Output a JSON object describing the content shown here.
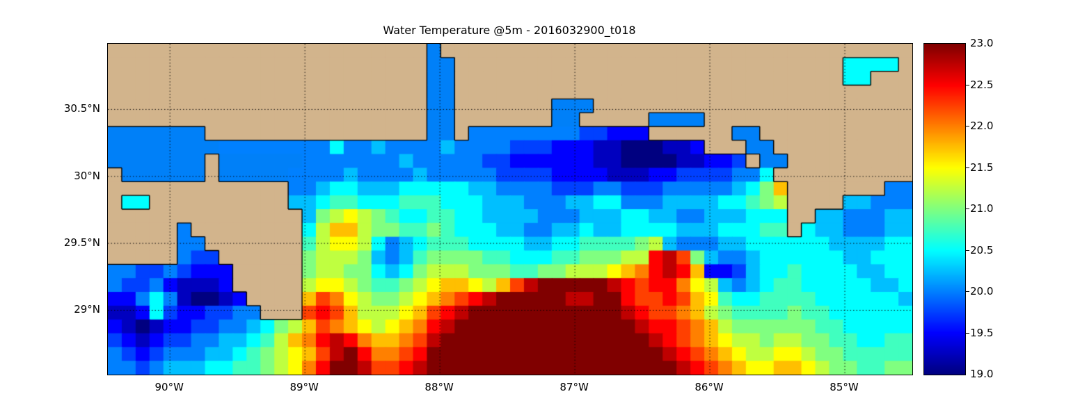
{
  "title": "Water Temperature @5m - 2016032900_t018",
  "chart_data": {
    "type": "heatmap",
    "title": "Water Temperature @5m - 2016032900_t018",
    "colormap": "jet",
    "value_range": [
      19.0,
      23.0
    ],
    "legend_position": "right-colorbar",
    "grid_on": true,
    "gridline_style": "dotted-black",
    "x_axis": {
      "tick_labels": [
        "90°W",
        "89°W",
        "88°W",
        "87°W",
        "86°W",
        "85°W"
      ],
      "tick_values": [
        90,
        89,
        88,
        87,
        86,
        85
      ],
      "lon_left_w": 90.46,
      "lon_right_w": 84.5
    },
    "y_axis": {
      "tick_labels": [
        "30.5°N",
        "30°N",
        "29.5°N",
        "29°N"
      ],
      "tick_values": [
        30.5,
        30.0,
        29.5,
        29.0
      ],
      "lat_top_n": 30.99,
      "lat_bottom_n": 28.52
    },
    "colorbar": {
      "min": 19.0,
      "max": 23.0,
      "tick_labels": [
        "23.0",
        "22.5",
        "22.0",
        "21.5",
        "21.0",
        "20.5",
        "20.0",
        "19.5",
        "19.0"
      ],
      "tick_values": [
        23.0,
        22.5,
        22.0,
        21.5,
        21.0,
        20.5,
        20.0,
        19.5,
        19.0
      ]
    },
    "colors": {
      "land": "#d2b48c",
      "inland_water": "#0080f8",
      "shallow_lake": "#00ffff",
      "coastline": "#000000",
      "background": "#ffffff"
    },
    "grid": {
      "cols": 58,
      "rows": 24,
      "temp_chars": "0123456789abcdefg",
      "temp_min": 19.0,
      "temp_step": 0.25,
      "cell_legend": {
        "L": "land",
        "B": "inland-water (bays and lakes, ~20.0 °C flat blue)",
        "C": "shallow cyan lake",
        "0-g": "sea temperature 19.0 to 23.0 °C in 0.25 °C steps"
      },
      "cells": [
        [
          "LLLLLLLLLLLLLLLLLLLLLLL",
          "B",
          "LLLLLLLLLLLLLLLLLLLLLLLLLLLLLLLLLL"
        ],
        [
          "LLLLLLLLLLLLLLLLLLLLLLL",
          "BB",
          "LLLLLLLLLLLLLLLLLLLLLLLLLLLL",
          "CCCC",
          "L"
        ],
        [
          "LLLLLLLLLLLLLLLLLLLLLLL",
          "BB",
          "LLLLLLLLLLLLLLLLLLLLLLLLLLLL",
          "CC",
          "LLL"
        ],
        [
          "LLLLLLLLLLLLLLLLLLLLLLL",
          "BB",
          "LLLLLLLLLLLLLLLLLLLLLLLLLLLLLLLLL"
        ],
        [
          "LLLLLLLLLLLLLLLLLLLLLLL",
          "BB",
          "LLLLLLL",
          "BBB",
          "LLLLLLLLLLLLLLLLLLLLLLL"
        ],
        [
          "LLLLLLLLLLLLLLLLLLLLLLL",
          "BB",
          "LLLLLLL",
          "BB",
          "LLLLL",
          "BBBB",
          "LLLLLLLLLLLLLLL"
        ],
        [
          "BBBBBBB",
          "LLLLLLLLLLLLLLLL",
          "BB",
          "L",
          "4444444433222",
          "LLLLLL",
          "BB",
          "LLLLLLLLLLL"
        ],
        [
          "BBBBBBB",
          "B",
          "4444444",
          "464454444544",
          "44333222",
          "11000112",
          "LLL",
          "BB",
          "LLLLLLLLLL"
        ],
        [
          "BBBBBBB",
          "L",
          "BBBBBB",
          "4",
          "444444544444",
          "3322222",
          "2110000112",
          "23",
          "L",
          "BB",
          "LLLLLLLLL"
        ],
        [
          "L",
          "BBBBBB",
          "L",
          "BBBBB",
          "44",
          "445444454444",
          "43333222",
          "21112233",
          "33446",
          "LLLLLLLLLL"
        ],
        [
          "LLLLLLLLLLLLL",
          "44",
          "5665",
          "556666",
          "655444",
          "433344",
          "333444",
          "44568",
          "b",
          "LLLLLLL",
          "44"
        ],
        [
          "L",
          "CC",
          "LLLLLLLLLL",
          "55",
          "6776",
          "667776",
          "665554",
          "445566",
          "444555",
          "56678",
          "9",
          "LLLL",
          "55444"
        ],
        [
          "LLLLLLLLLLLLLL",
          "5",
          "89a98",
          "76677",
          "66555",
          "54445",
          "55665",
          "54455",
          "5666",
          "LL",
          "5544455"
        ],
        [
          "LLLLL",
          "4",
          "LLLLLLLL",
          "6",
          "9bb98",
          "87787",
          "66655",
          "44556",
          "55666",
          "65556",
          "6677",
          "L",
          "65544455"
        ],
        [
          "LLLLL",
          "44",
          "LLLLLLL",
          "7",
          "9aa96",
          "45677",
          "76666",
          "55667",
          "77789",
          "54445",
          "56666",
          "66555566"
        ],
        [
          "LLLLL",
          "433",
          "LLLLLL",
          "8",
          "99985",
          "45788",
          "88776",
          "66778",
          "8899e",
          "fd854",
          "45666",
          "66655666"
        ],
        [
          "44334",
          "3222",
          "LLLLL",
          "8",
          "99886",
          "56899",
          "98887",
          "78899",
          "9abce",
          "feb22",
          "35667",
          "66665566"
        ],
        [
          "43342",
          "1112",
          "LLLLL",
          "9",
          "aa987",
          "789ab",
          "ba9bd",
          "fgggg",
          "gfede",
          "eca95",
          "45677",
          "66666556"
        ],
        [
          "22464",
          "10012",
          "LLLL",
          "b",
          "dca98",
          "89abc",
          "defgg",
          "gggff",
          "ggedd",
          "edba7",
          "66777",
          "76666665"
        ],
        [
          "11263",
          "223344",
          "LLL",
          "d",
          "edb99",
          "9abde",
          "fgggg",
          "ggggg",
          "ggfed",
          "dcb98",
          "77778",
          "77666666"
        ],
        [
          "21012",
          "23344",
          "5689b",
          "dcba9",
          "abcef",
          "ggggg",
          "ggggg",
          "gggfe",
          "edcb9",
          "88888",
          "87766666"
        ],
        [
          "32123",
          "34455",
          "679bc",
          "efecb",
          "bcdfg",
          "ggggg",
          "ggggg",
          "ggggf",
          "edcba",
          "99899",
          "88776677"
        ],
        [
          "43234",
          "44556",
          "789ab",
          "dfgec",
          "cdegg",
          "ggggg",
          "ggggg",
          "ggggg",
          "fedcb",
          "a99aa",
          "98877777"
        ],
        [
          "44345",
          "55667",
          "789ac",
          "eggfd",
          "defgg",
          "ggggg",
          "ggggg",
          "ggggg",
          "gfedc",
          "baabb",
          "a9887788"
        ]
      ]
    }
  }
}
